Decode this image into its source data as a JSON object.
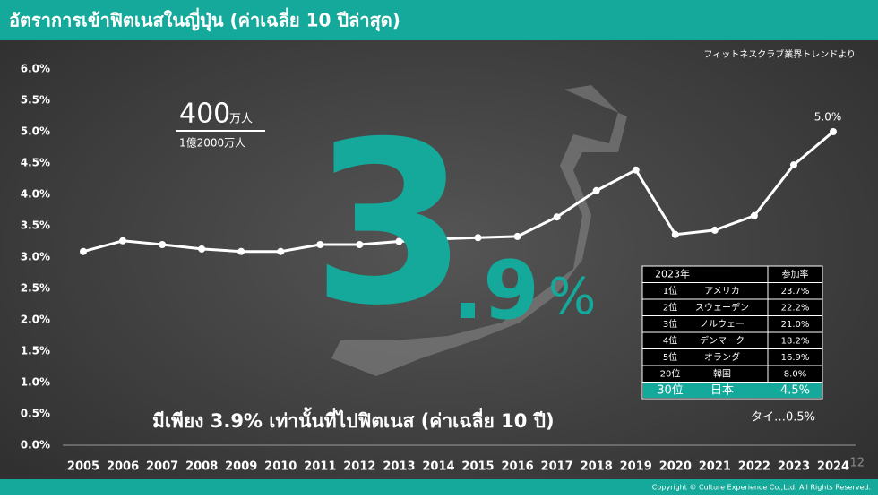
{
  "header": {
    "title": "อัตราการเข้าฟิตเนสในญี่ปุ่น (ค่าเฉลี่ย 10 ปีล่าสุด)",
    "source": "フィットネスクラブ業界トレンドより"
  },
  "chart_data": {
    "type": "line",
    "categories": [
      "2005",
      "2006",
      "2007",
      "2008",
      "2009",
      "2010",
      "2011",
      "2012",
      "2013",
      "2014",
      "2015",
      "2016",
      "2017",
      "2018",
      "2019",
      "2020",
      "2021",
      "2022",
      "2023",
      "2024"
    ],
    "series": [
      {
        "name": "参加率",
        "color": "#ffffff",
        "values": [
          3.09,
          3.26,
          3.2,
          3.13,
          3.09,
          3.09,
          3.2,
          3.2,
          3.25,
          3.29,
          3.31,
          3.33,
          3.64,
          4.06,
          4.39,
          3.36,
          3.43,
          3.66,
          4.47,
          5.0
        ],
        "value_labels": [
          null,
          null,
          null,
          null,
          null,
          null,
          null,
          null,
          null,
          null,
          null,
          null,
          null,
          null,
          null,
          null,
          null,
          null,
          null,
          "5.0%"
        ]
      }
    ],
    "ylim": [
      0,
      6
    ],
    "yticks": [
      {
        "value": 0,
        "label": "0.0%"
      },
      {
        "value": 0.5,
        "label": "0.5%"
      },
      {
        "value": 1,
        "label": "1.0%"
      },
      {
        "value": 1.5,
        "label": "1.5%"
      },
      {
        "value": 2,
        "label": "2.0%"
      },
      {
        "value": 2.5,
        "label": "2.5%"
      },
      {
        "value": 3,
        "label": "3.0%"
      },
      {
        "value": 3.5,
        "label": "3.5%"
      },
      {
        "value": 4,
        "label": "4.0%"
      },
      {
        "value": 4.5,
        "label": "4.5%"
      },
      {
        "value": 5,
        "label": "5.0%"
      },
      {
        "value": 5.5,
        "label": "5.5%"
      },
      {
        "value": 6,
        "label": "6.0%"
      }
    ],
    "grid": false
  },
  "population": {
    "number": "400",
    "unit": "万人",
    "total": "1億2000万人"
  },
  "highlight": {
    "integer": "3",
    "decimal": ".9",
    "unit": "%"
  },
  "caption": "มีเพียง 3.9% เท่านั้นที่ไปฟิตเนส (ค่าเฉลี่ย 10 ปี)",
  "note": "タイ…0.5%",
  "table": {
    "header": [
      "2023年",
      "参加率"
    ],
    "rows": [
      [
        "1位",
        "アメリカ",
        "23.7%"
      ],
      [
        "2位",
        "スウェーデン",
        "22.2%"
      ],
      [
        "3位",
        "ノルウェー",
        "21.0%"
      ],
      [
        "4位",
        "デンマーク",
        "18.2%"
      ],
      [
        "5位",
        "オランダ",
        "16.9%"
      ],
      [
        "20位",
        "韓国",
        "8.0%"
      ],
      [
        "30位",
        "日本",
        "4.5%"
      ]
    ]
  },
  "footer": {
    "page": "12",
    "copyright": "Copyright © Culture Experience Co.,Ltd. All Rights Reserved."
  }
}
